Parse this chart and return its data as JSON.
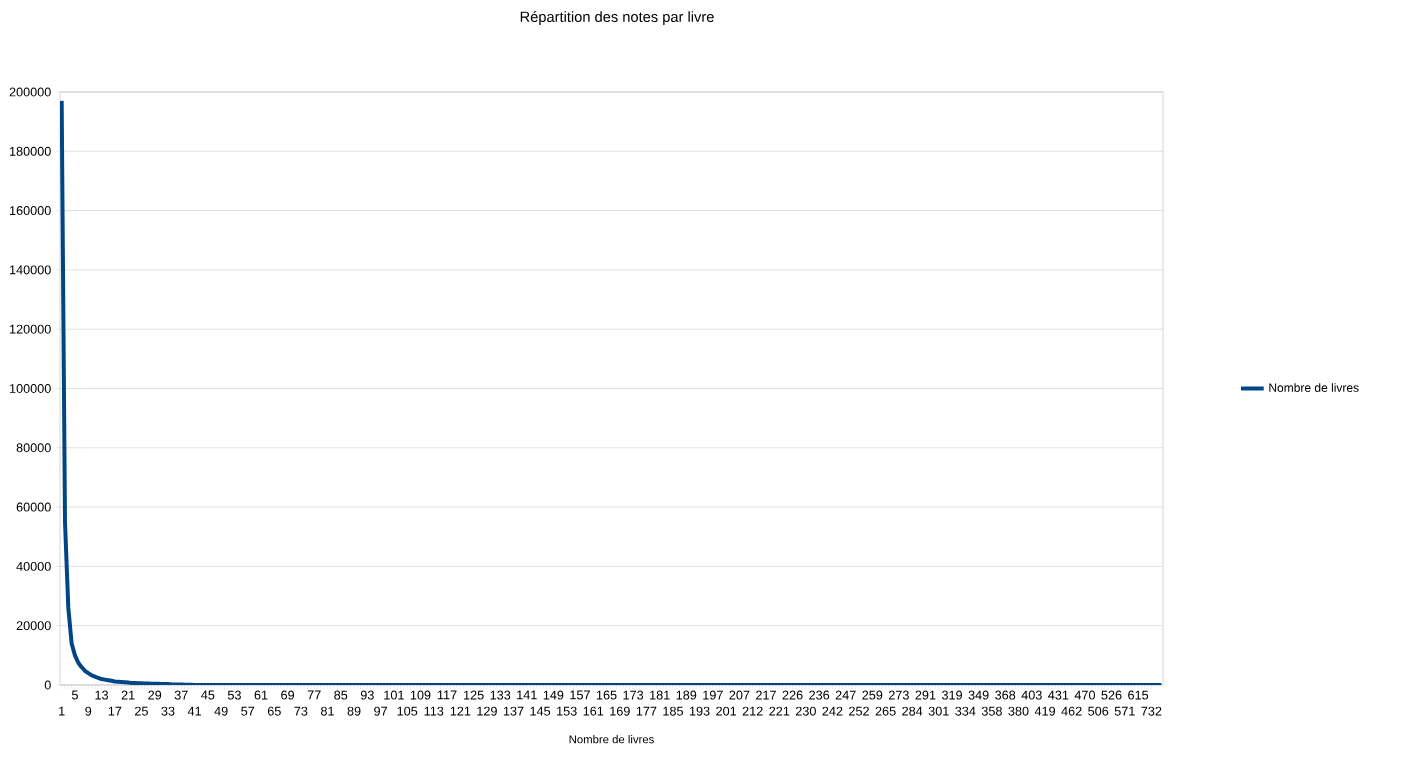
{
  "chart_data": {
    "type": "line",
    "title": "Répartition des notes  par livre",
    "xlabel": "Nombre de livres",
    "categories": [
      "1",
      null,
      null,
      null,
      "5",
      null,
      null,
      null,
      "9",
      null,
      null,
      null,
      "13",
      null,
      null,
      null,
      "17",
      null,
      null,
      null,
      "21",
      null,
      null,
      null,
      "25",
      null,
      null,
      null,
      "29",
      null,
      null,
      null,
      "33",
      null,
      null,
      null,
      "37",
      null,
      null,
      null,
      "41",
      null,
      null,
      null,
      "45",
      null,
      null,
      null,
      "49",
      null,
      null,
      null,
      "53",
      null,
      null,
      null,
      "57",
      null,
      null,
      null,
      "61",
      null,
      null,
      null,
      "65",
      null,
      null,
      null,
      "69",
      null,
      null,
      null,
      "73",
      null,
      null,
      null,
      "77",
      null,
      null,
      null,
      "81",
      null,
      null,
      null,
      "85",
      null,
      null,
      null,
      "89",
      null,
      null,
      null,
      "93",
      null,
      null,
      null,
      "97",
      null,
      null,
      null,
      "101",
      null,
      null,
      null,
      "105",
      null,
      null,
      null,
      "109",
      null,
      null,
      null,
      "113",
      null,
      null,
      null,
      "117",
      null,
      null,
      null,
      "121",
      null,
      null,
      null,
      "125",
      null,
      null,
      null,
      "129",
      null,
      null,
      null,
      "133",
      null,
      null,
      null,
      "137",
      null,
      null,
      null,
      "141",
      null,
      null,
      null,
      "145",
      null,
      null,
      null,
      "149",
      null,
      null,
      null,
      "153",
      null,
      null,
      null,
      "157",
      null,
      null,
      null,
      "161",
      null,
      null,
      null,
      "165",
      null,
      null,
      null,
      "169",
      null,
      null,
      null,
      "173",
      null,
      null,
      null,
      "177",
      null,
      null,
      null,
      "181",
      null,
      null,
      null,
      "185",
      null,
      null,
      null,
      "189",
      null,
      null,
      null,
      "193",
      null,
      null,
      null,
      "197",
      null,
      null,
      null,
      "201",
      null,
      null,
      null,
      "207",
      null,
      null,
      null,
      "212",
      null,
      null,
      null,
      "217",
      null,
      null,
      null,
      "221",
      null,
      null,
      null,
      "226",
      null,
      null,
      null,
      "230",
      null,
      null,
      null,
      "236",
      null,
      null,
      null,
      "242",
      null,
      null,
      null,
      "247",
      null,
      null,
      null,
      "252",
      null,
      null,
      null,
      "259",
      null,
      null,
      null,
      "265",
      null,
      null,
      null,
      "273",
      null,
      null,
      null,
      "284",
      null,
      null,
      null,
      "291",
      null,
      null,
      null,
      "301",
      null,
      null,
      null,
      "319",
      null,
      null,
      null,
      "334",
      null,
      null,
      null,
      "349",
      null,
      null,
      null,
      "358",
      null,
      null,
      null,
      "368",
      null,
      null,
      null,
      "380",
      null,
      null,
      null,
      "403",
      null,
      null,
      null,
      "419",
      null,
      null,
      null,
      "431",
      null,
      null,
      null,
      "462",
      null,
      null,
      null,
      "470",
      null,
      null,
      null,
      "506",
      null,
      null,
      null,
      "526",
      null,
      null,
      null,
      "571",
      null,
      null,
      null,
      "615",
      null,
      null,
      null,
      "732",
      null,
      null,
      null
    ],
    "series": [
      {
        "name": "Nombre de livres",
        "color": "#004586",
        "values": [
          197000,
          55000,
          26000,
          14000,
          10000,
          7500,
          6000,
          4800,
          4000,
          3300,
          2800,
          2400,
          2000,
          1800,
          1600,
          1400,
          1200,
          1100,
          1000,
          900,
          800,
          700,
          700,
          600,
          600,
          500,
          500,
          400,
          400,
          400,
          300,
          300,
          300,
          200,
          200,
          200,
          200,
          100,
          100,
          100,
          0,
          0,
          0,
          0,
          0,
          0,
          0,
          0,
          0,
          0,
          0,
          0,
          0,
          0,
          0,
          0,
          0,
          0,
          0,
          0,
          0,
          0,
          0,
          0,
          0,
          0,
          0,
          0,
          0,
          0,
          0,
          0,
          0,
          0,
          0,
          0,
          0,
          0,
          0,
          0,
          0,
          0,
          0,
          0,
          0,
          0,
          0,
          0,
          0,
          0,
          0,
          0,
          0,
          0,
          0,
          0,
          0,
          0,
          0,
          0,
          0,
          0,
          0,
          0,
          0,
          0,
          0,
          0,
          0,
          0,
          0,
          0,
          0,
          0,
          0,
          0,
          0,
          0,
          0,
          0,
          0,
          0,
          0,
          0,
          0,
          0,
          0,
          0,
          0,
          0,
          0,
          0,
          0,
          0,
          0,
          0,
          0,
          0,
          0,
          0,
          0,
          0,
          0,
          0,
          0,
          0,
          0,
          0,
          0,
          0,
          0,
          0,
          0,
          0,
          0,
          0,
          0,
          0,
          0,
          0,
          0,
          0,
          0,
          0,
          0,
          0,
          0,
          0,
          0,
          0,
          0,
          0,
          0,
          0,
          0,
          0,
          0,
          0,
          0,
          0,
          0,
          0,
          0,
          0,
          0,
          0,
          0,
          0,
          0,
          0,
          0,
          0,
          0,
          0,
          0,
          0,
          0,
          0,
          0,
          0,
          0,
          0,
          0,
          0,
          0,
          0,
          0,
          0,
          0,
          0,
          0,
          0,
          0,
          0,
          0,
          0,
          0,
          0,
          0,
          0,
          0,
          0,
          0,
          0,
          0,
          0,
          0,
          0,
          0,
          0,
          0,
          0,
          0,
          0,
          0,
          0,
          0,
          0,
          0,
          0,
          0,
          0,
          0,
          0,
          0,
          0,
          0,
          0,
          0,
          0,
          0,
          0,
          0,
          0,
          0,
          0,
          0,
          0,
          0,
          0,
          0,
          0,
          0,
          0,
          0,
          0,
          0,
          0,
          0,
          0,
          0,
          0,
          0,
          0,
          0,
          0,
          0,
          0,
          0,
          0,
          0,
          0,
          0,
          0,
          0,
          0,
          0,
          0,
          0,
          0,
          0,
          0,
          0,
          0,
          0,
          0,
          0,
          0,
          0,
          0,
          0,
          0,
          0,
          0,
          0,
          0,
          0,
          0,
          0,
          0,
          0,
          0,
          0,
          0,
          0,
          0,
          0,
          0,
          0,
          0,
          0,
          0,
          0,
          0,
          0,
          0,
          0,
          0,
          0,
          0,
          0,
          0
        ]
      }
    ],
    "ylim": [
      0,
      200000
    ],
    "yticks": [
      0,
      20000,
      40000,
      60000,
      80000,
      100000,
      120000,
      140000,
      160000,
      180000,
      200000
    ],
    "grid": "y",
    "legend": "right",
    "marker": "none",
    "line_style": "solid"
  }
}
